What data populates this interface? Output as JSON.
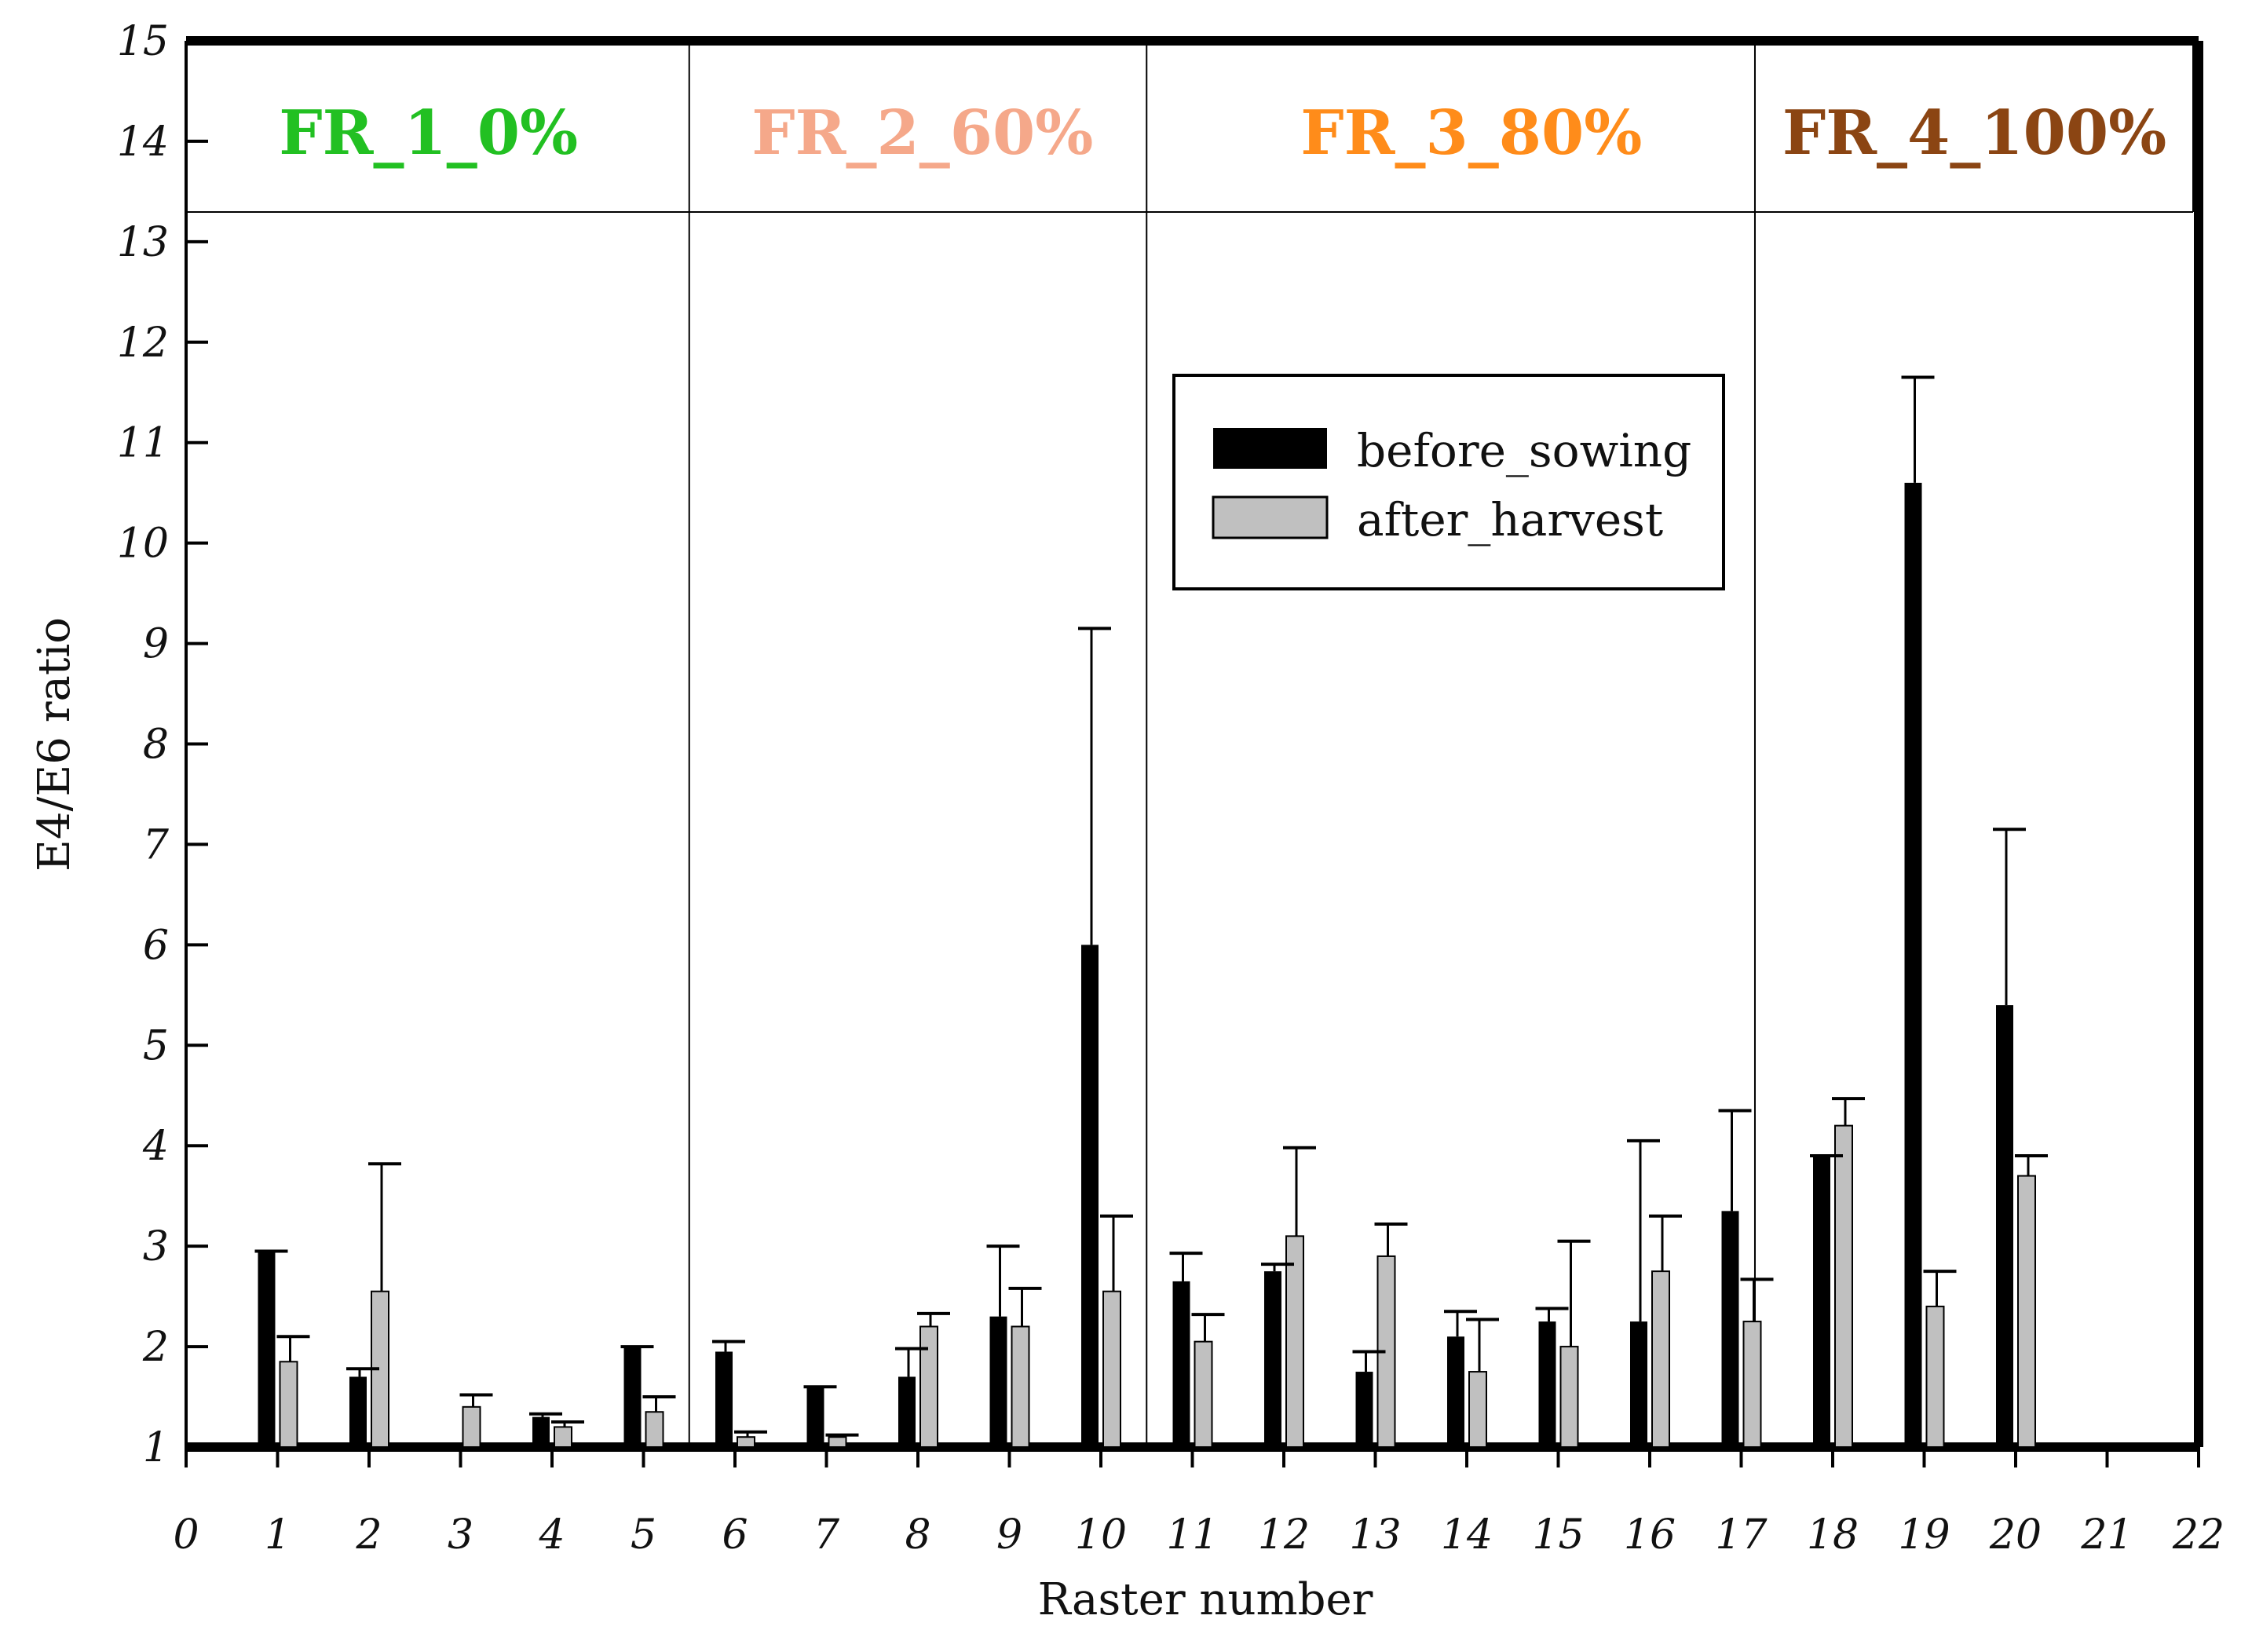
{
  "chart_data": {
    "type": "bar",
    "title": "",
    "xlabel": "Raster number",
    "ylabel": "E4/E6 ratio",
    "xlim": [
      0,
      22
    ],
    "ylim": [
      1,
      15
    ],
    "x_ticks": [
      "0",
      "1",
      "2",
      "3",
      "4",
      "5",
      "6",
      "7",
      "8",
      "9",
      "10",
      "11",
      "12",
      "13",
      "14",
      "15",
      "16",
      "17",
      "18",
      "19",
      "20",
      "21",
      "22"
    ],
    "y_ticks": [
      "1",
      "2",
      "3",
      "4",
      "5",
      "6",
      "7",
      "8",
      "9",
      "10",
      "11",
      "12",
      "13",
      "14",
      "15"
    ],
    "categories": [
      1,
      2,
      3,
      4,
      5,
      6,
      7,
      8,
      9,
      10,
      11,
      12,
      13,
      14,
      15,
      16,
      17,
      18,
      19,
      20
    ],
    "series": [
      {
        "name": "before_sowing",
        "color": "#000000",
        "values": [
          2.95,
          1.7,
          null,
          1.3,
          2.0,
          1.95,
          1.6,
          1.7,
          2.3,
          6.0,
          2.65,
          2.75,
          1.75,
          2.1,
          2.25,
          2.25,
          3.35,
          3.9,
          10.6,
          5.4
        ],
        "error": [
          0.0,
          0.08,
          null,
          0.03,
          0.0,
          0.1,
          0.0,
          0.28,
          0.7,
          3.15,
          0.28,
          0.07,
          0.2,
          0.25,
          0.13,
          1.8,
          1.0,
          0.0,
          1.05,
          1.75
        ]
      },
      {
        "name": "after_harvest",
        "color": "#c0c0c0",
        "values": [
          1.85,
          2.55,
          1.4,
          1.2,
          1.35,
          1.1,
          1.1,
          2.2,
          2.2,
          2.55,
          2.05,
          3.1,
          2.9,
          1.75,
          2.0,
          2.75,
          2.25,
          4.2,
          2.4,
          3.7
        ],
        "error": [
          0.25,
          1.27,
          0.12,
          0.05,
          0.15,
          0.05,
          0.02,
          0.13,
          0.38,
          0.75,
          0.27,
          0.88,
          0.32,
          0.52,
          1.05,
          0.55,
          0.42,
          0.27,
          0.35,
          0.2
        ]
      }
    ],
    "groups": [
      {
        "label": "FR_1_0%",
        "color": "#22c022"
      },
      {
        "label": "FR_2_60%",
        "color": "#f5a88a"
      },
      {
        "label": "FR_3_80%",
        "color": "#ff8c1a"
      },
      {
        "label": "FR_4_100%",
        "color": "#8b4513"
      }
    ],
    "legend": {
      "position": "center-right",
      "entries": [
        "before_sowing",
        "after_harvest"
      ]
    }
  }
}
